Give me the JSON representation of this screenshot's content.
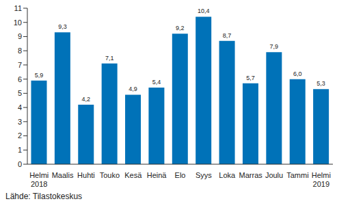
{
  "chart_data": {
    "type": "bar",
    "categories": [
      "Helmi 2018",
      "Maalis",
      "Huhti",
      "Touko",
      "Kesä",
      "Heinä",
      "Elo",
      "Syys",
      "Loka",
      "Marras",
      "Joulu",
      "Tammi",
      "Helmi 2019"
    ],
    "values": [
      5.9,
      9.3,
      4.2,
      7.1,
      4.9,
      5.4,
      9.2,
      10.4,
      8.7,
      5.7,
      7.9,
      6.0,
      5.3
    ],
    "value_labels": [
      "5,9",
      "9,3",
      "4,2",
      "7,1",
      "4,9",
      "5,4",
      "9,2",
      "10,4",
      "8,7",
      "5,7",
      "7,9",
      "6,0",
      "5,3"
    ],
    "color": "#0072b8",
    "ylim": [
      0,
      11
    ],
    "yticks": [
      0,
      1,
      2,
      3,
      4,
      5,
      6,
      7,
      8,
      9,
      10,
      11
    ],
    "grid": false,
    "data_labels": true,
    "source": "Lähde: Tilastokeskus"
  }
}
